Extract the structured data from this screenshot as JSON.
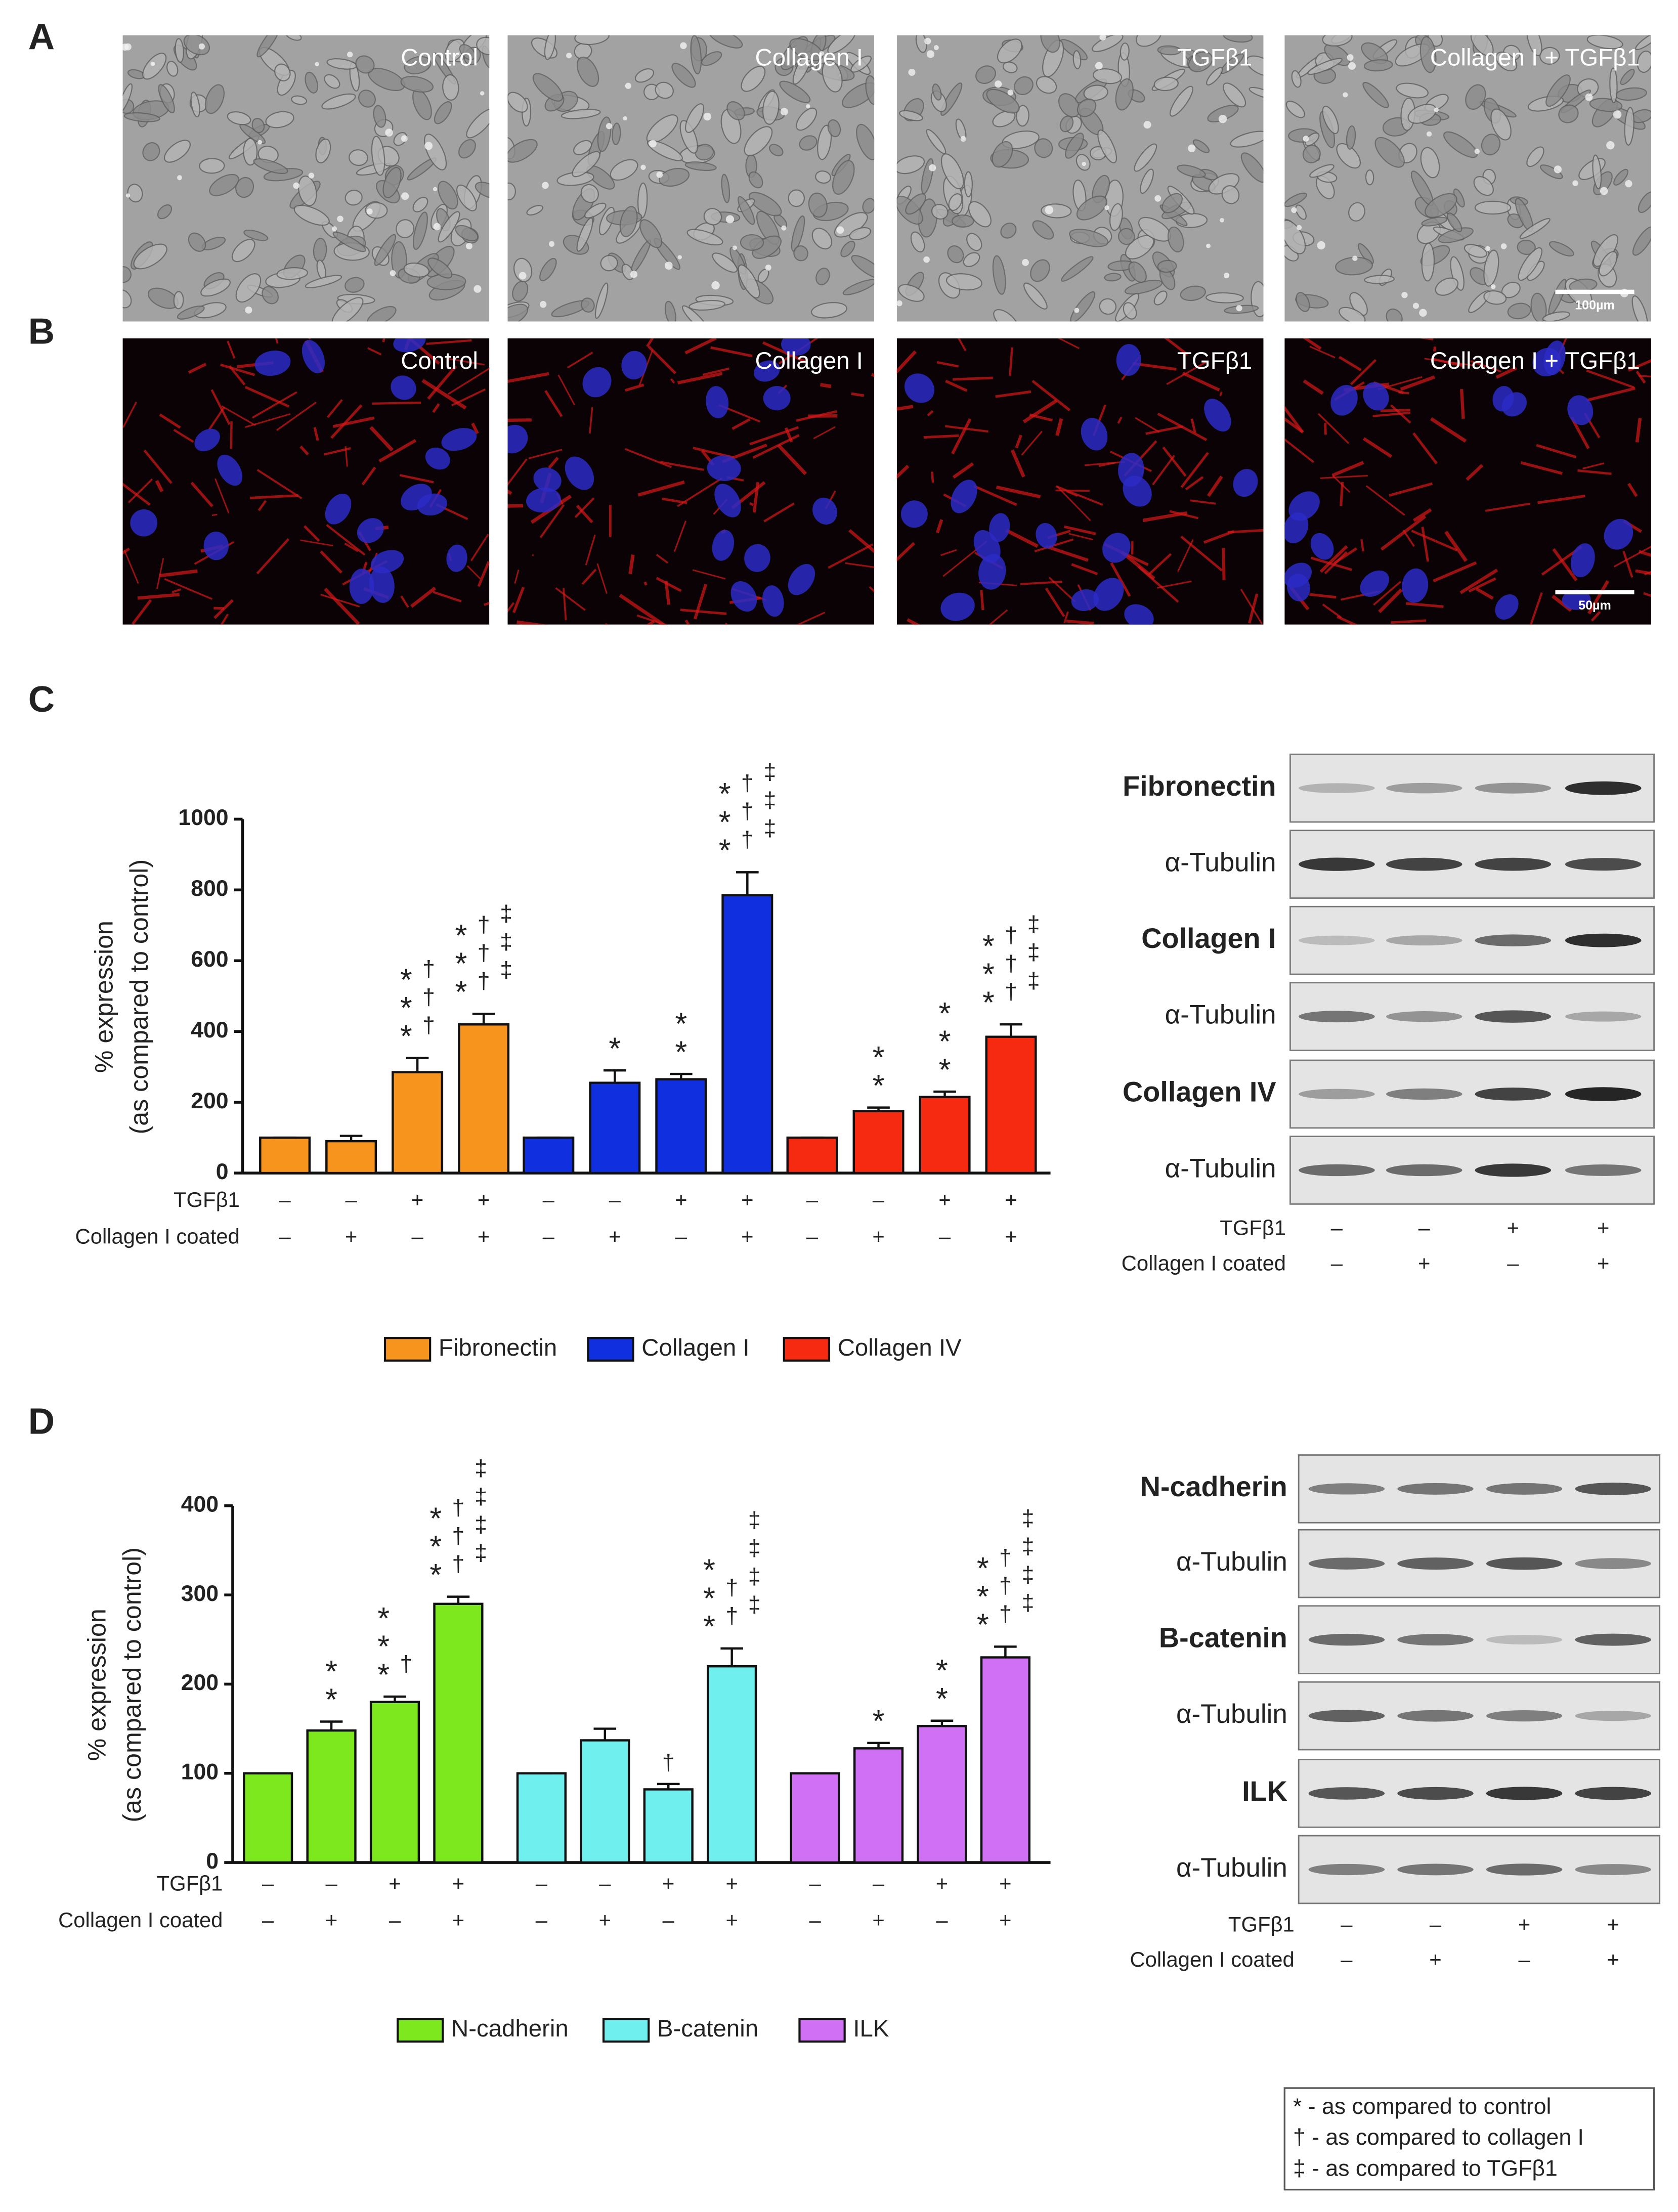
{
  "panel_labels": [
    "A",
    "B",
    "C",
    "D"
  ],
  "micrographs": [
    {
      "images": [
        "Control",
        "Collagen I",
        "TGFβ1",
        "Collagen I + TGFβ1"
      ],
      "scale_bar": "100µm"
    },
    {
      "images": [
        "Control",
        "Collagen I",
        "TGFβ1",
        "Collagen I + TGFβ1"
      ],
      "scale_bar": "50µm"
    }
  ],
  "chart_data": [
    {
      "type": "bar",
      "y_label": [
        "% expression",
        "(as compared to control)"
      ],
      "ylim": [
        0,
        1000
      ],
      "yticks": [
        0,
        200,
        400,
        600,
        800,
        1000
      ],
      "series": [
        {
          "name": "Fibronectin",
          "color": "#f7941d",
          "values": [
            100,
            90,
            285,
            420
          ],
          "errors": [
            0,
            15,
            40,
            30
          ],
          "annotations": [
            [],
            [],
            [
              "***",
              "†††"
            ],
            [
              "***",
              "†††",
              "‡‡‡"
            ]
          ]
        },
        {
          "name": "Collagen I",
          "color": "#1030e0",
          "values": [
            100,
            255,
            265,
            785
          ],
          "errors": [
            0,
            35,
            15,
            65
          ],
          "annotations": [
            [],
            [
              "*"
            ],
            [
              "**"
            ],
            [
              "***",
              "†††",
              "‡‡‡"
            ]
          ]
        },
        {
          "name": "Collagen IV",
          "color": "#f52a10",
          "values": [
            100,
            175,
            215,
            385
          ],
          "errors": [
            0,
            10,
            15,
            35
          ],
          "annotations": [
            [],
            [
              "**"
            ],
            [
              "***"
            ],
            [
              "***",
              "†††",
              "‡‡‡"
            ]
          ]
        }
      ],
      "conditions": [
        {
          "name": "TGFβ1",
          "values": [
            "–",
            "–",
            "+",
            "+",
            "–",
            "–",
            "+",
            "+",
            "–",
            "–",
            "+",
            "+"
          ]
        },
        {
          "name": "Collagen I coated",
          "values": [
            "–",
            "+",
            "–",
            "+",
            "–",
            "+",
            "–",
            "+",
            "–",
            "+",
            "–",
            "+"
          ]
        }
      ]
    },
    {
      "type": "bar",
      "y_label": [
        "% expression",
        "(as compared to control)"
      ],
      "ylim": [
        0,
        400
      ],
      "yticks": [
        0,
        100,
        200,
        300,
        400
      ],
      "series": [
        {
          "name": "N-cadherin",
          "color": "#7ee81e",
          "values": [
            100,
            148,
            180,
            290
          ],
          "errors": [
            0,
            10,
            6,
            8
          ],
          "annotations": [
            [],
            [
              "**"
            ],
            [
              "***",
              "†"
            ],
            [
              "***",
              "†††",
              "‡‡‡‡"
            ]
          ]
        },
        {
          "name": "B-catenin",
          "color": "#6ff0ee",
          "values": [
            100,
            137,
            82,
            220
          ],
          "errors": [
            0,
            13,
            6,
            20
          ],
          "annotations": [
            [],
            [],
            [
              "†"
            ],
            [
              "***",
              "††",
              "‡‡‡‡"
            ]
          ]
        },
        {
          "name": "ILK",
          "color": "#d070f5",
          "values": [
            100,
            128,
            153,
            230
          ],
          "errors": [
            0,
            6,
            6,
            12
          ],
          "annotations": [
            [],
            [
              "*"
            ],
            [
              "**"
            ],
            [
              "***",
              "†††",
              "‡‡‡‡"
            ]
          ]
        }
      ],
      "conditions": [
        {
          "name": "TGFβ1",
          "values": [
            "–",
            "–",
            "+",
            "+",
            "–",
            "–",
            "+",
            "+",
            "–",
            "–",
            "+",
            "+"
          ]
        },
        {
          "name": "Collagen I coated",
          "values": [
            "–",
            "+",
            "–",
            "+",
            "–",
            "+",
            "–",
            "+",
            "–",
            "+",
            "–",
            "+"
          ]
        }
      ]
    }
  ],
  "blots": [
    {
      "rows": [
        "Fibronectin",
        "α-Tubulin",
        "Collagen I",
        "α-Tubulin",
        "Collagen IV",
        "α-Tubulin"
      ],
      "conditions": [
        {
          "name": "TGFβ1",
          "values": [
            "–",
            "–",
            "+",
            "+"
          ]
        },
        {
          "name": "Collagen I coated",
          "values": [
            "–",
            "+",
            "–",
            "+"
          ]
        }
      ]
    },
    {
      "rows": [
        "N-cadherin",
        "α-Tubulin",
        "B-catenin",
        "α-Tubulin",
        "ILK",
        "α-Tubulin"
      ],
      "conditions": [
        {
          "name": "TGFβ1",
          "values": [
            "–",
            "–",
            "+",
            "+"
          ]
        },
        {
          "name": "Collagen I coated",
          "values": [
            "–",
            "+",
            "–",
            "+"
          ]
        }
      ]
    }
  ],
  "footnotes": [
    "* - as compared to control",
    "† - as compared to collagen I",
    "‡ - as compared to TGFβ1"
  ]
}
